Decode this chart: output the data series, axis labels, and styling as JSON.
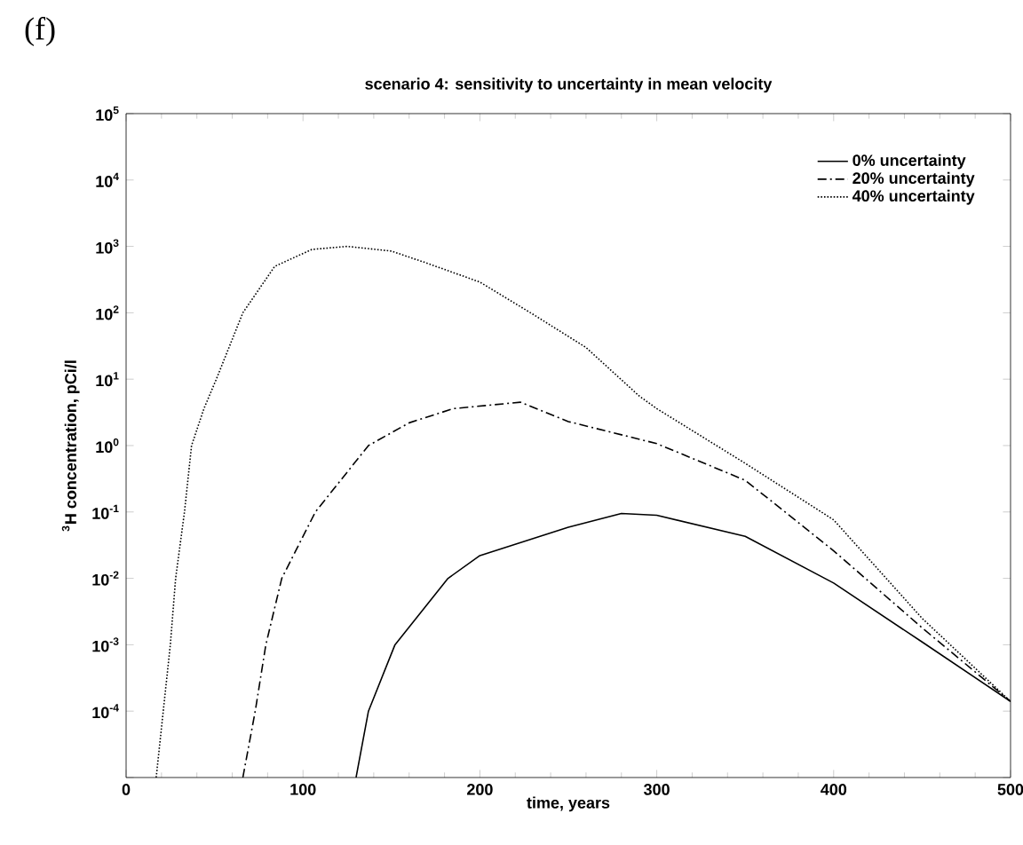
{
  "chart_data": {
    "type": "line",
    "title": "scenario 4: sensitivity to uncertainty in mean velocity",
    "xlabel": "time, years",
    "ylabel": "$^{3}$H concentration, pCi/l",
    "annotations": [
      "(f)"
    ],
    "log": "y",
    "xlim": [
      0,
      500
    ],
    "xticks": [
      0,
      100,
      200,
      300,
      400,
      500
    ],
    "ylim": [
      1e-05,
      100000
    ],
    "yticks": [
      {
        "value": 1e-05,
        "label": null
      },
      {
        "value": 0.0001,
        "label": "10$^{-4}$"
      },
      {
        "value": 0.001,
        "label": "10$^{-3}$"
      },
      {
        "value": 0.01,
        "label": "10$^{-2}$"
      },
      {
        "value": 0.1,
        "label": "10$^{-1}$"
      },
      {
        "value": 1,
        "label": "10$^{0}$"
      },
      {
        "value": 10,
        "label": "10$^{1}$"
      },
      {
        "value": 100,
        "label": "10$^{2}$"
      },
      {
        "value": 1000,
        "label": "10$^{3}$"
      },
      {
        "value": 10000,
        "label": "10$^{4}$"
      },
      {
        "value": 100000,
        "label": "10$^{5}$"
      }
    ],
    "legend": "top right",
    "grid": false,
    "marker": "none",
    "series": [
      {
        "name": "0% uncertainty",
        "color": "#000000",
        "line_style": "solid",
        "x": [
          130,
          137,
          152,
          182,
          200,
          250,
          280,
          300,
          350,
          400,
          450,
          500
        ],
        "values": [
          1e-05,
          0.0001,
          0.001,
          0.01,
          0.022,
          0.059,
          0.095,
          0.089,
          0.043,
          0.0085,
          0.0011,
          0.00014
        ]
      },
      {
        "name": "20% uncertainty",
        "color": "#000000",
        "line_style": "dashed",
        "x": [
          66,
          73,
          79,
          88,
          107,
          137,
          160,
          185,
          223,
          250,
          300,
          350,
          400,
          450,
          500
        ],
        "values": [
          1e-05,
          0.0001,
          0.001,
          0.01,
          0.1,
          1,
          2.2,
          3.6,
          4.5,
          2.3,
          1.07,
          0.3,
          0.026,
          0.0018,
          0.00014
        ]
      },
      {
        "name": "40% uncertainty",
        "color": "#000000",
        "line_style": "dotted",
        "x": [
          17,
          21,
          25,
          28,
          33,
          37,
          44,
          51,
          66,
          84,
          105,
          125,
          150,
          170,
          200,
          230,
          260,
          290,
          300,
          350,
          400,
          450,
          500
        ],
        "values": [
          1e-05,
          0.0001,
          0.001,
          0.01,
          0.1,
          1,
          3.6,
          10,
          100,
          500,
          900,
          1000,
          850,
          560,
          290,
          95,
          30,
          5.6,
          3.6,
          0.54,
          0.076,
          0.0025,
          0.00014
        ]
      }
    ]
  }
}
